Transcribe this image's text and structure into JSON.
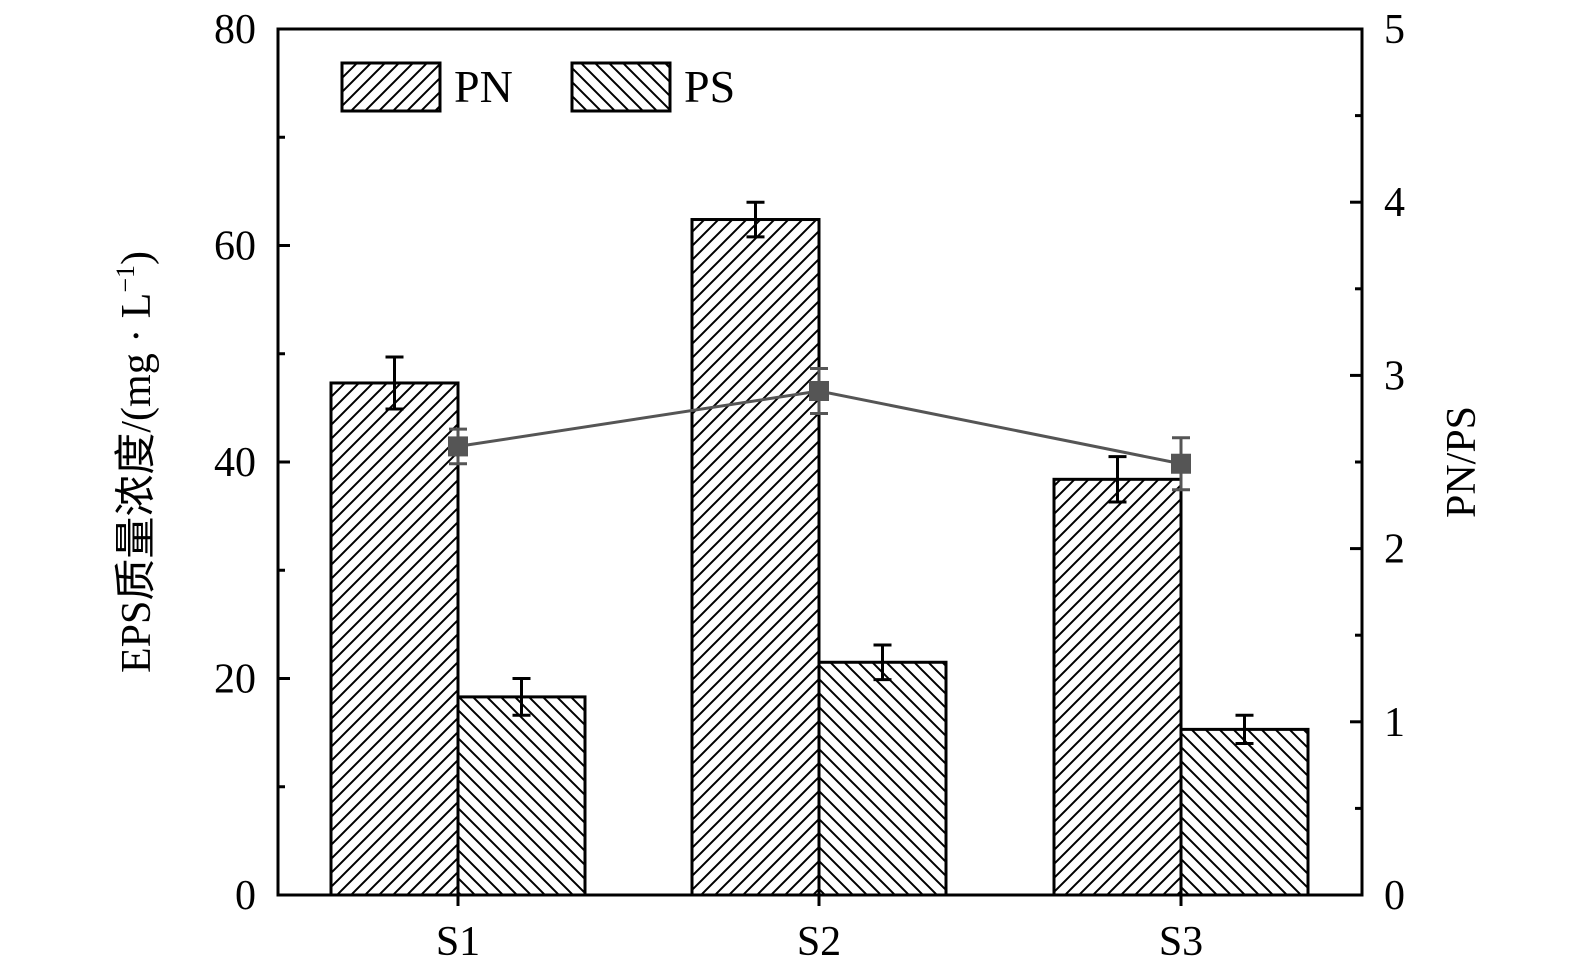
{
  "chart_data": {
    "type": "bar",
    "categories": [
      "S1",
      "S2",
      "S3"
    ],
    "series": [
      {
        "name": "PN",
        "values": [
          47.3,
          62.4,
          38.4
        ],
        "errors": [
          2.4,
          1.6,
          2.1
        ],
        "hatch": "forward",
        "axis": "left"
      },
      {
        "name": "PS",
        "values": [
          18.3,
          21.5,
          15.3
        ],
        "errors": [
          1.7,
          1.6,
          1.3
        ],
        "hatch": "backward",
        "axis": "left"
      }
    ],
    "line_series": {
      "name": "PN/PS",
      "values": [
        2.59,
        2.91,
        2.49
      ],
      "errors": [
        0.1,
        0.13,
        0.15
      ],
      "axis": "right",
      "color": "#555555"
    },
    "xlabel": "",
    "ylabel": "EPS质量浓度/(mg · L",
    "ylabel_sup": "−1",
    "ylabel_close": ")",
    "y2label": "PN/PS",
    "ylim": [
      0,
      80
    ],
    "y2lim": [
      0,
      5
    ],
    "yticks": [
      "0",
      "20",
      "40",
      "60",
      "80"
    ],
    "y2ticks": [
      "0",
      "1",
      "2",
      "3",
      "4",
      "5"
    ],
    "legend_position": "top-left",
    "grid": false
  }
}
